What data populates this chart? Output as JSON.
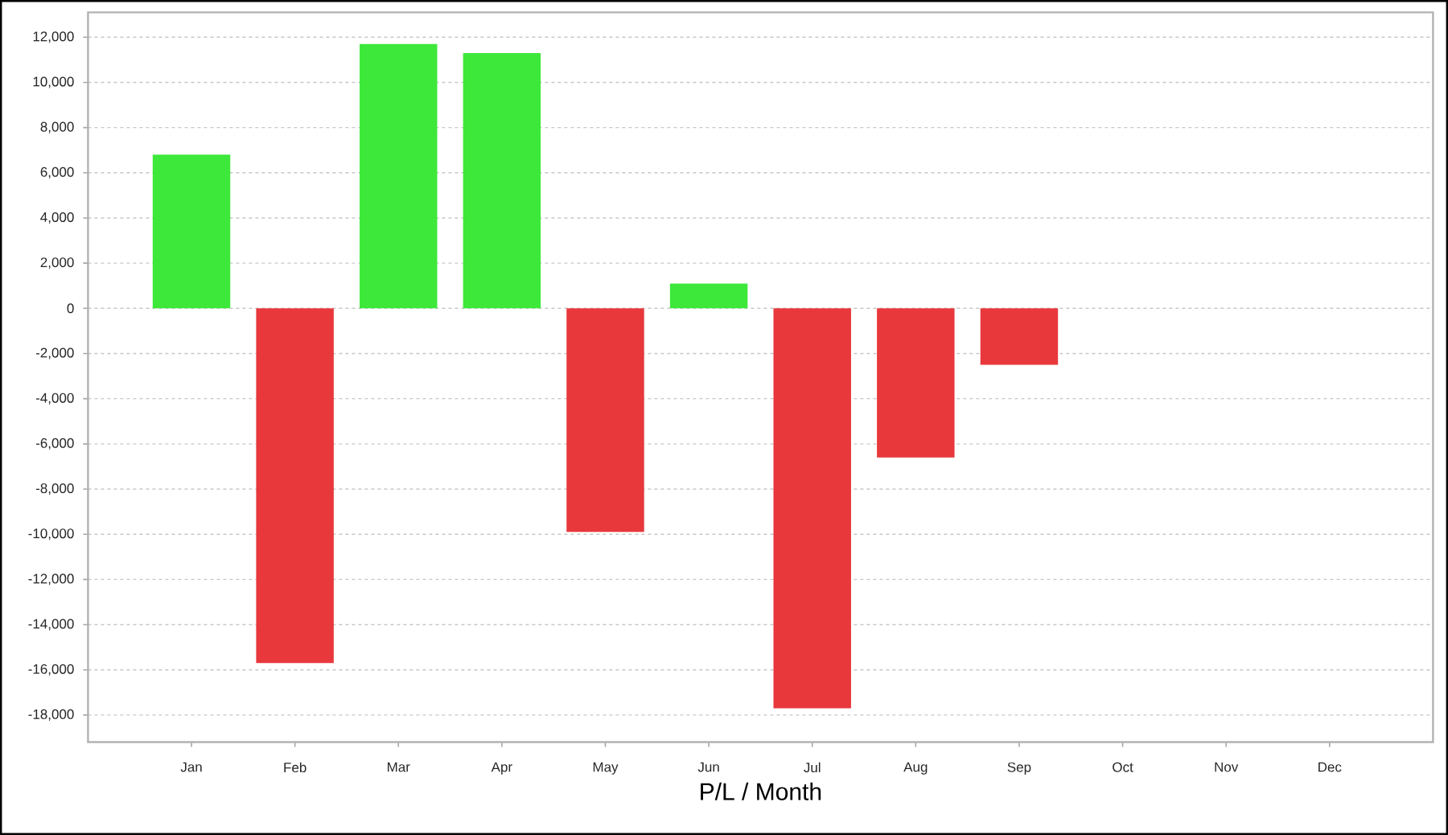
{
  "chart_data": {
    "type": "bar",
    "xlabel": "P/L / Month",
    "categories": [
      "Jan",
      "Feb",
      "Mar",
      "Apr",
      "May",
      "Jun",
      "Jul",
      "Aug",
      "Sep",
      "Oct",
      "Nov",
      "Dec"
    ],
    "values": [
      6800,
      -15700,
      11700,
      11300,
      -9900,
      1100,
      -17700,
      -6600,
      -2500,
      null,
      null,
      null
    ],
    "colors": [
      "#3de83a",
      "#e8383c",
      "#3de83a",
      "#3de83a",
      "#e8383c",
      "#3de83a",
      "#e8383c",
      "#e8383c",
      "#e8383c",
      null,
      null,
      null
    ],
    "ylim": [
      -19200,
      13100
    ],
    "yticks": [
      {
        "value": -18000,
        "label": "-18,000"
      },
      {
        "value": -16000,
        "label": "-16,000"
      },
      {
        "value": -14000,
        "label": "-14,000"
      },
      {
        "value": -12000,
        "label": "-12,000"
      },
      {
        "value": -10000,
        "label": "-10,000"
      },
      {
        "value": -8000,
        "label": "-8,000"
      },
      {
        "value": -6000,
        "label": "-6,000"
      },
      {
        "value": -4000,
        "label": "-4,000"
      },
      {
        "value": -2000,
        "label": "-2,000"
      },
      0,
      {
        "value": 2000,
        "label": "2,000"
      },
      {
        "value": 4000,
        "label": "4,000"
      },
      {
        "value": 6000,
        "label": "6,000"
      },
      {
        "value": 8000,
        "label": "8,000"
      },
      {
        "value": 10000,
        "label": "10,000"
      },
      {
        "value": 12000,
        "label": "12,000"
      }
    ],
    "grid": "y"
  }
}
